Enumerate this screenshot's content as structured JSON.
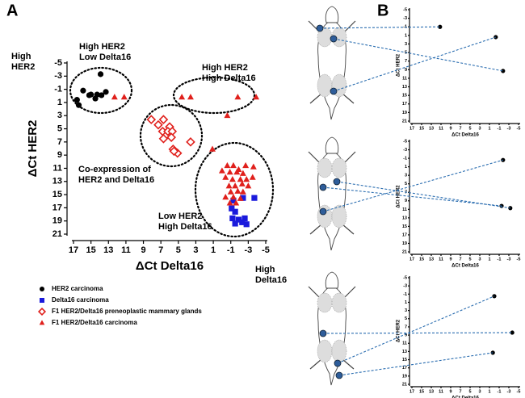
{
  "chart_data": [
    {
      "type": "scatter",
      "panel": "A",
      "xlabel": "ΔCt Delta16",
      "ylabel": "ΔCt HER2",
      "xlim": [
        17,
        -5
      ],
      "ylim": [
        21,
        -5
      ],
      "xticks": [
        17,
        15,
        13,
        11,
        9,
        7,
        5,
        3,
        1,
        -1,
        -3,
        -5
      ],
      "yticks": [
        -5,
        -3,
        -1,
        1,
        3,
        5,
        7,
        9,
        11,
        13,
        15,
        17,
        19,
        21
      ],
      "annotations": [
        [
          "High",
          "HER2"
        ],
        [
          "High HER2",
          "Low Delta16"
        ],
        [
          "High HER2",
          "High Delta16"
        ],
        [
          "Co-expression of",
          "HER2 and Delta16"
        ],
        [
          "Low HER2",
          "High Delta16"
        ],
        [
          "High",
          "Delta16"
        ]
      ],
      "series": [
        {
          "name": "HER2 carcinoma",
          "color": "#000000",
          "marker": "circle",
          "x": [
            16.4,
            16.6,
            15.9,
            15.2,
            15.0,
            14.5,
            14.3,
            13.8,
            13.3,
            13.9
          ],
          "values": [
            1.4,
            0.6,
            -0.8,
            -0.1,
            -0.2,
            0.4,
            -0.2,
            -0.1,
            -0.6,
            -3.3
          ]
        },
        {
          "name": "Delta16 carcinoma",
          "color": "#1a1adc",
          "marker": "square",
          "x": [
            -1.3,
            -2.4,
            -3.7,
            -1.1,
            -1.5,
            -1.2,
            -1.9,
            -2.6,
            -1.5,
            -2.3,
            -2.8
          ],
          "values": [
            15.9,
            15.5,
            15.5,
            17.1,
            17.6,
            18.6,
            18.8,
            18.6,
            19.4,
            19.2,
            19.5
          ]
        },
        {
          "name": "F1 HER2/Delta16 preneoplastic mammary glands",
          "color": "#e0201c",
          "marker": "diamond",
          "x": [
            8.1,
            6.7,
            7.3,
            6.0,
            6.8,
            6.2,
            5.7,
            5.8,
            6.7,
            5.6,
            5.1,
            5.5,
            3.6
          ],
          "values": [
            3.6,
            3.6,
            4.4,
            4.7,
            5.4,
            5.4,
            5.4,
            6.3,
            6.5,
            8.1,
            8.7,
            8.4,
            7.0
          ]
        },
        {
          "name": "F1 HER2/Delta16 carcinoma",
          "color": "#e0201c",
          "marker": "triangle",
          "x": [
            12.3,
            11.2,
            4.6,
            3.6,
            -1.8,
            -3.9,
            -0.6,
            1.1,
            -0.6,
            -1.3,
            -1.9,
            -2.7,
            -0.9,
            -1.7,
            -2.4,
            -0.4,
            -1.2,
            -2.1,
            -2.8,
            -3.5,
            -0.8,
            -1.5,
            -2.3,
            -3.0,
            -1.0,
            -1.8,
            -2.4,
            -0.4,
            -1.3,
            -2.1,
            -0.9,
            -1.6,
            -3.6,
            0
          ],
          "values": [
            0.2,
            0.2,
            0.2,
            0.2,
            0.2,
            0.2,
            3.0,
            8.1,
            10.6,
            10.6,
            11.2,
            10.6,
            11.6,
            11.6,
            11.8,
            12.4,
            12.7,
            12.7,
            12.7,
            12.4,
            13.7,
            13.7,
            13.4,
            13.7,
            14.6,
            14.5,
            14.6,
            15.4,
            15.4,
            15.6,
            16.3,
            16.3,
            10.8,
            11.4
          ]
        }
      ]
    },
    {
      "type": "scatter",
      "panel": "B",
      "xlabel": "ΔCt Delta16",
      "ylabel": "ΔCt HER2",
      "xlim": [
        17,
        -5
      ],
      "ylim": [
        21,
        -5
      ],
      "xticks": [
        17,
        15,
        13,
        11,
        9,
        7,
        5,
        3,
        1,
        -1,
        -3,
        -5
      ],
      "yticks": [
        -5,
        -3,
        -1,
        1,
        3,
        5,
        7,
        9,
        11,
        13,
        15,
        17,
        19,
        21
      ],
      "series": [
        {
          "color": "#000000",
          "marker": "circle",
          "x": [
            11.2,
            -0.3,
            -1.8
          ],
          "values": [
            -1.0,
            1.4,
            9.3
          ]
        }
      ]
    },
    {
      "type": "scatter",
      "xlabel": "ΔCt Delta16",
      "ylabel": "ΔCt HER2",
      "xlim": [
        17,
        -5
      ],
      "ylim": [
        21,
        -5
      ],
      "xticks": [
        17,
        15,
        13,
        11,
        9,
        7,
        5,
        3,
        1,
        -1,
        -3,
        -5
      ],
      "yticks": [
        -5,
        -3,
        -1,
        1,
        3,
        5,
        7,
        9,
        11,
        13,
        15,
        17,
        19,
        21
      ],
      "series": [
        {
          "color": "#000000",
          "marker": "circle",
          "x": [
            -1.8,
            -1.5,
            -3.3
          ],
          "values": [
            -0.6,
            10.2,
            10.7
          ]
        }
      ]
    },
    {
      "type": "scatter",
      "xlabel": "ΔCt Delta16",
      "ylabel": "ΔCt HER2",
      "xlim": [
        17,
        -5
      ],
      "ylim": [
        21,
        -5
      ],
      "xticks": [
        17,
        15,
        13,
        11,
        9,
        7,
        5,
        3,
        1,
        -1,
        -3,
        -5
      ],
      "yticks": [
        -5,
        -3,
        -1,
        1,
        3,
        5,
        7,
        9,
        11,
        13,
        15,
        17,
        19,
        21
      ],
      "series": [
        {
          "color": "#000000",
          "marker": "circle",
          "x": [
            0,
            -3.7,
            0.3
          ],
          "values": [
            -0.5,
            8.4,
            13.3
          ]
        }
      ]
    }
  ]
}
